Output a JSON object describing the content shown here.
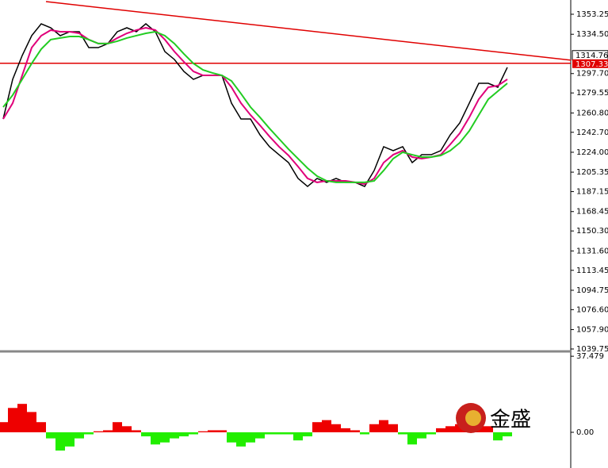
{
  "chart_data": [
    {
      "type": "line",
      "ylim": [
        1037.5,
        1366.6
      ],
      "yticks": [
        {
          "value": 1353.25,
          "label": "1353.25"
        },
        {
          "value": 1334.5,
          "label": "1334.50"
        },
        {
          "value": 1297.7,
          "label": "1297.70"
        },
        {
          "value": 1279.55,
          "label": "1279.55"
        },
        {
          "value": 1260.8,
          "label": "1260.80"
        },
        {
          "value": 1242.7,
          "label": "1242.70"
        },
        {
          "value": 1224.0,
          "label": "1224.00"
        },
        {
          "value": 1205.35,
          "label": "1205.35"
        },
        {
          "value": 1187.15,
          "label": "1187.15"
        },
        {
          "value": 1168.45,
          "label": "1168.45"
        },
        {
          "value": 1150.3,
          "label": "1150.30"
        },
        {
          "value": 1131.6,
          "label": "1131.60"
        },
        {
          "value": 1113.45,
          "label": "1113.45"
        },
        {
          "value": 1094.75,
          "label": "1094.75"
        },
        {
          "value": 1076.6,
          "label": "1076.60"
        },
        {
          "value": 1057.9,
          "label": "1057.90"
        },
        {
          "value": 1039.75,
          "label": "1039.75"
        }
      ],
      "current_price": 1314.76,
      "level": 1307.33,
      "level_color": "#e00000",
      "trendline": {
        "x": [
          4.5,
          59.7
        ],
        "y": [
          1365.1,
          1310.2
        ],
        "color": "#e00000"
      },
      "series": [
        {
          "color": "#000000",
          "values": [
            1255.2,
            1292.3,
            1314.6,
            1333.2,
            1344.3,
            1340.6,
            1333.2,
            1336.9,
            1336.9,
            1322.0,
            1322.0,
            1325.8,
            1336.9,
            1340.6,
            1336.9,
            1344.3,
            1336.9,
            1318.3,
            1310.9,
            1299.7,
            1292.3,
            1296.0,
            1296.0,
            1296.0,
            1270.0,
            1255.2,
            1255.2,
            1240.3,
            1229.2,
            1221.7,
            1214.3,
            1199.5,
            1192.0,
            1199.5,
            1195.8,
            1199.5,
            1195.8,
            1195.8,
            1192.0,
            1206.9,
            1229.2,
            1225.5,
            1229.2,
            1214.3,
            1221.7,
            1221.7,
            1225.5,
            1240.3,
            1251.5,
            1270.0,
            1288.6,
            1288.6,
            1284.9,
            1303.5
          ]
        },
        {
          "color": "#e0007a",
          "values": [
            1255.2,
            1270.0,
            1296.0,
            1322.0,
            1333.2,
            1338.4,
            1336.9,
            1336.9,
            1335.4,
            1329.5,
            1325.8,
            1325.8,
            1331.0,
            1335.4,
            1338.4,
            1340.6,
            1338.4,
            1329.5,
            1318.3,
            1308.7,
            1299.7,
            1296.0,
            1296.0,
            1296.0,
            1284.9,
            1270.0,
            1258.9,
            1249.2,
            1238.8,
            1229.2,
            1221.0,
            1210.6,
            1199.5,
            1195.8,
            1197.2,
            1197.2,
            1197.2,
            1195.8,
            1194.2,
            1199.5,
            1214.3,
            1221.7,
            1225.5,
            1219.5,
            1218.0,
            1219.5,
            1221.7,
            1231.4,
            1241.8,
            1256.7,
            1273.7,
            1284.9,
            1286.4,
            1292.3
          ]
        },
        {
          "color": "#22cc22",
          "values": [
            1266.3,
            1277.5,
            1292.3,
            1307.2,
            1320.6,
            1329.5,
            1331.0,
            1332.4,
            1332.4,
            1329.5,
            1325.8,
            1325.8,
            1328.0,
            1331.0,
            1333.2,
            1335.4,
            1336.9,
            1333.2,
            1325.8,
            1316.1,
            1307.2,
            1301.2,
            1298.3,
            1296.0,
            1290.8,
            1278.9,
            1266.3,
            1256.7,
            1246.3,
            1236.6,
            1226.9,
            1218.0,
            1209.1,
            1201.7,
            1197.2,
            1195.8,
            1195.8,
            1195.8,
            1195.8,
            1197.2,
            1206.9,
            1218.0,
            1224.0,
            1221.7,
            1219.5,
            1219.5,
            1221.0,
            1225.5,
            1232.9,
            1244.0,
            1258.9,
            1273.7,
            1281.2,
            1288.6
          ]
        }
      ]
    },
    {
      "type": "bar",
      "ylim": [
        -17.6,
        38.7
      ],
      "yticks": [
        {
          "value": 37.479,
          "label": "37.479"
        },
        {
          "value": 0,
          "label": "0.00"
        }
      ],
      "colors": {
        "positive": "#ee0000",
        "negative": "#22ee00"
      },
      "watermark": "金盛",
      "values": [
        5,
        12,
        14,
        10,
        5,
        -3,
        -9,
        -7,
        -3,
        -1,
        0.5,
        1,
        5,
        3,
        1,
        -2,
        -6,
        -5,
        -3,
        -2,
        -1,
        0.5,
        1,
        1,
        -5,
        -7,
        -5,
        -3,
        -1,
        -1,
        -1,
        -4,
        -2,
        5,
        6,
        4,
        2,
        1,
        -1,
        4,
        6,
        4,
        -1,
        -6,
        -3,
        -1,
        2,
        3,
        4,
        5,
        6,
        3,
        -4,
        -2
      ]
    }
  ]
}
